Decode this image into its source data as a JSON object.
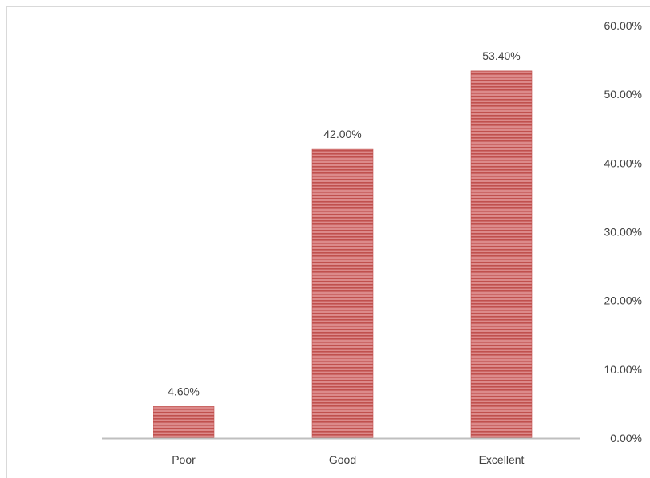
{
  "chart_data": {
    "type": "bar",
    "categories": [
      "Poor",
      "Good",
      "Excellent"
    ],
    "values": [
      4.6,
      42.0,
      53.4
    ],
    "data_labels": [
      "4.60%",
      "42.00%",
      "53.40%"
    ],
    "y_ticks": [
      "0.00%",
      "10.00%",
      "20.00%",
      "30.00%",
      "40.00%",
      "50.00%",
      "60.00%"
    ],
    "ylim": [
      0,
      60
    ],
    "y_axis_side": "right",
    "grid": false,
    "legend": "none",
    "title": "",
    "xlabel": "",
    "ylabel": "",
    "colors": {
      "bar_fill": "#dc8a8a",
      "bar_stripe": "#c0504d",
      "axis_line": "#bfbfbf",
      "text": "#404040"
    }
  }
}
